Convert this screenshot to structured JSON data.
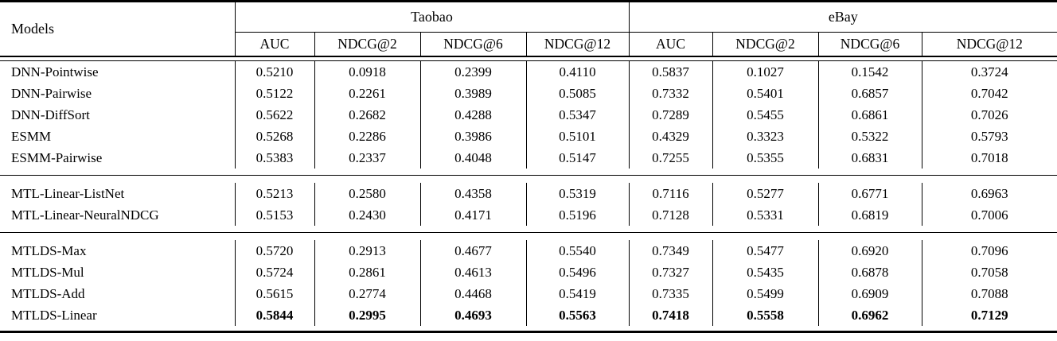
{
  "table": {
    "corner_header": "Models",
    "groups": [
      {
        "label": "Taobao",
        "columns": [
          "AUC",
          "NDCG@2",
          "NDCG@6",
          "NDCG@12"
        ]
      },
      {
        "label": "eBay",
        "columns": [
          "AUC",
          "NDCG@2",
          "NDCG@6",
          "NDCG@12"
        ]
      }
    ],
    "sections": [
      {
        "rows": [
          {
            "model": "DNN-Pointwise",
            "bold": false,
            "values": [
              "0.5210",
              "0.0918",
              "0.2399",
              "0.4110",
              "0.5837",
              "0.1027",
              "0.1542",
              "0.3724"
            ]
          },
          {
            "model": "DNN-Pairwise",
            "bold": false,
            "values": [
              "0.5122",
              "0.2261",
              "0.3989",
              "0.5085",
              "0.7332",
              "0.5401",
              "0.6857",
              "0.7042"
            ]
          },
          {
            "model": "DNN-DiffSort",
            "bold": false,
            "values": [
              "0.5622",
              "0.2682",
              "0.4288",
              "0.5347",
              "0.7289",
              "0.5455",
              "0.6861",
              "0.7026"
            ]
          },
          {
            "model": "ESMM",
            "bold": false,
            "values": [
              "0.5268",
              "0.2286",
              "0.3986",
              "0.5101",
              "0.4329",
              "0.3323",
              "0.5322",
              "0.5793"
            ]
          },
          {
            "model": "ESMM-Pairwise",
            "bold": false,
            "values": [
              "0.5383",
              "0.2337",
              "0.4048",
              "0.5147",
              "0.7255",
              "0.5355",
              "0.6831",
              "0.7018"
            ]
          }
        ]
      },
      {
        "rows": [
          {
            "model": "MTL-Linear-ListNet",
            "bold": false,
            "values": [
              "0.5213",
              "0.2580",
              "0.4358",
              "0.5319",
              "0.7116",
              "0.5277",
              "0.6771",
              "0.6963"
            ]
          },
          {
            "model": "MTL-Linear-NeuralNDCG",
            "bold": false,
            "values": [
              "0.5153",
              "0.2430",
              "0.4171",
              "0.5196",
              "0.7128",
              "0.5331",
              "0.6819",
              "0.7006"
            ]
          }
        ]
      },
      {
        "rows": [
          {
            "model": "MTLDS-Max",
            "bold": false,
            "values": [
              "0.5720",
              "0.2913",
              "0.4677",
              "0.5540",
              "0.7349",
              "0.5477",
              "0.6920",
              "0.7096"
            ]
          },
          {
            "model": "MTLDS-Mul",
            "bold": false,
            "values": [
              "0.5724",
              "0.2861",
              "0.4613",
              "0.5496",
              "0.7327",
              "0.5435",
              "0.6878",
              "0.7058"
            ]
          },
          {
            "model": "MTLDS-Add",
            "bold": false,
            "values": [
              "0.5615",
              "0.2774",
              "0.4468",
              "0.5419",
              "0.7335",
              "0.5499",
              "0.6909",
              "0.7088"
            ]
          },
          {
            "model": "MTLDS-Linear",
            "bold": true,
            "values": [
              "0.5844",
              "0.2995",
              "0.4693",
              "0.5563",
              "0.7418",
              "0.5558",
              "0.6962",
              "0.7129"
            ]
          }
        ]
      }
    ]
  }
}
